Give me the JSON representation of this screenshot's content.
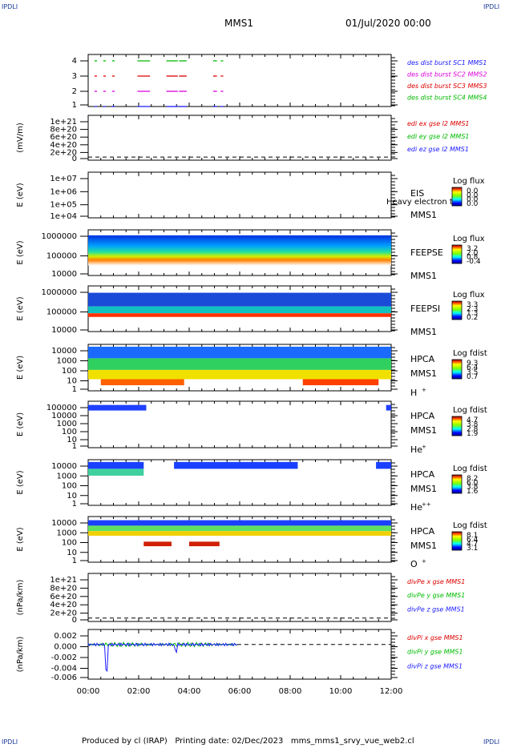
{
  "corner": {
    "tl": "IPDLI",
    "tr": "IPDLI",
    "bl": "IPDLI",
    "br": "IPDLI"
  },
  "header": {
    "mission": "MMS1",
    "date": "01/Jul/2020 00:00"
  },
  "footer": {
    "text": "Produced by cl (IRAP)   Printing date: 02/Dec/2023   mms_mms1_srvy_vue_web2.cl"
  },
  "chart_data": {
    "type": "line",
    "x_ticks": [
      "00:00",
      "02:00",
      "04:00",
      "06:00",
      "08:00",
      "10:00",
      "12:00"
    ],
    "x_range_hours": [
      0,
      12
    ],
    "panels": [
      {
        "id": "burst",
        "ticks": [
          "4",
          "3",
          "2",
          "1"
        ],
        "legend": [
          {
            "text": "des dist burst SC1 MMS1",
            "color": "#1a1aff"
          },
          {
            "text": "des dist burst SC2 MMS2",
            "color": "#dd00dd"
          },
          {
            "text": "des dist burst SC3 MMS3",
            "color": "#dd0000"
          },
          {
            "text": "des dist burst SC4 MMS4",
            "color": "#00bb00"
          }
        ],
        "series": [
          {
            "sc": 4,
            "color": "#00bb00",
            "segments": [
              [
                0.25,
                0.35
              ],
              [
                0.6,
                0.7
              ],
              [
                0.95,
                1.05
              ],
              [
                1.95,
                2.45
              ],
              [
                3.1,
                3.55
              ],
              [
                3.6,
                3.9
              ],
              [
                4.95,
                5.1
              ],
              [
                5.25,
                5.35
              ]
            ]
          },
          {
            "sc": 3,
            "color": "#dd0000",
            "segments": [
              [
                0.25,
                0.35
              ],
              [
                0.6,
                0.7
              ],
              [
                0.95,
                1.05
              ],
              [
                1.95,
                2.45
              ],
              [
                3.1,
                3.55
              ],
              [
                3.6,
                3.9
              ],
              [
                4.95,
                5.1
              ],
              [
                5.25,
                5.35
              ]
            ]
          },
          {
            "sc": 2,
            "color": "#dd00dd",
            "segments": [
              [
                0.25,
                0.35
              ],
              [
                0.6,
                0.7
              ],
              [
                0.95,
                1.05
              ],
              [
                1.95,
                2.45
              ],
              [
                3.1,
                3.55
              ],
              [
                3.6,
                3.9
              ],
              [
                4.95,
                5.1
              ],
              [
                5.25,
                5.35
              ]
            ]
          },
          {
            "sc": 1,
            "color": "#1a1aff",
            "segments": [
              [
                0.25,
                0.35
              ],
              [
                0.6,
                0.7
              ],
              [
                0.95,
                1.05
              ],
              [
                1.95,
                2.45
              ],
              [
                3.1,
                3.55
              ],
              [
                3.6,
                3.9
              ],
              [
                4.95,
                5.1
              ],
              [
                5.25,
                5.35
              ]
            ]
          }
        ]
      },
      {
        "id": "edi",
        "ylabel": "(mV/m)",
        "ticks": [
          "1e+21",
          "8e+20",
          "6e+20",
          "4e+20",
          "2e+20",
          "0"
        ],
        "legend": [
          {
            "text": "edi ex gse l2 MMS1",
            "color": "#dd0000"
          },
          {
            "text": "edi ey gse l2 MMS1",
            "color": "#00bb00"
          },
          {
            "text": "edi ez gse l2 MMS1",
            "color": "#1a1aff"
          }
        ]
      },
      {
        "id": "eis",
        "ylabel": "E (eV)",
        "ticks": [
          "1e+07",
          "1e+06",
          "1e+05",
          "1e+04"
        ],
        "labels": [
          "EIS",
          "Heavy electron to",
          "MMS1"
        ],
        "cb_title": "Log flux",
        "cb_ticks": [
          "0.0",
          "0.0",
          "0.0",
          "0.0"
        ]
      },
      {
        "id": "feepse",
        "ylabel": "E (eV)",
        "ticks": [
          "1000000",
          "100000",
          "10000"
        ],
        "labels": [
          "FEEPSE",
          "MMS1"
        ],
        "cb_title": "Log flux",
        "cb_ticks": [
          "3.2",
          "2.0",
          "0.8",
          "-0.4"
        ]
      },
      {
        "id": "feepsi",
        "ylabel": "E (eV)",
        "ticks": [
          "1000000",
          "100000",
          "10000"
        ],
        "labels": [
          "FEEPSI",
          "MMS1"
        ],
        "cb_title": "Log flux",
        "cb_ticks": [
          "3.3",
          "2.3",
          "1.3",
          "0.2"
        ]
      },
      {
        "id": "hpca_h",
        "ylabel": "E (eV)",
        "ticks": [
          "10000",
          "1000",
          "100",
          "10",
          "1"
        ],
        "labels": [
          "HPCA",
          "MMS1",
          "H"
        ],
        "sup": "+",
        "cb_title": "Log fdist",
        "cb_ticks": [
          "9.3",
          "6.4",
          "3.5",
          "0.7"
        ]
      },
      {
        "id": "hpca_he",
        "ylabel": "E (eV)",
        "ticks": [
          "100000",
          "10000",
          "1000",
          "100",
          "10",
          "1"
        ],
        "labels": [
          "HPCA",
          "MMS1",
          "He"
        ],
        "sup": "+",
        "cb_title": "Log fdist",
        "cb_ticks": [
          "4.7",
          "3.8",
          "2.8",
          "1.9"
        ]
      },
      {
        "id": "hpca_hepp",
        "ylabel": "E (eV)",
        "ticks": [
          "10000",
          "1000",
          "100",
          "10",
          "1"
        ],
        "labels": [
          "HPCA",
          "MMS1",
          "He"
        ],
        "sup": "++",
        "cb_title": "Log fdist",
        "cb_ticks": [
          "8.2",
          "6.0",
          "3.8",
          "1.6"
        ]
      },
      {
        "id": "hpca_o",
        "ylabel": "E (eV)",
        "ticks": [
          "10000",
          "1000",
          "100",
          "10",
          "1"
        ],
        "labels": [
          "HPCA",
          "MMS1",
          "O"
        ],
        "sup": "+",
        "cb_title": "Log fdist",
        "cb_ticks": [
          "8.1",
          "6.4",
          "4.7",
          "3.1"
        ]
      },
      {
        "id": "divpe",
        "ylabel": "(nPa/km)",
        "ticks": [
          "1e+21",
          "8e+20",
          "6e+20",
          "4e+20",
          "2e+20",
          "0"
        ],
        "legend": [
          {
            "text": "divPe x gse MMS1",
            "color": "#dd0000"
          },
          {
            "text": "divPe y gse MMS1",
            "color": "#00bb00"
          },
          {
            "text": "divPe z gse MMS1",
            "color": "#1a1aff"
          }
        ]
      },
      {
        "id": "divpi",
        "ylabel": "(nPa/km)",
        "ticks": [
          "0.002",
          "0.000",
          "-0.002",
          "-0.004",
          "-0.006"
        ],
        "ylim": [
          -0.007,
          0.003
        ],
        "legend": [
          {
            "text": "divPi x gse MMS1",
            "color": "#dd0000"
          },
          {
            "text": "divPi y gse MMS1",
            "color": "#00bb00"
          },
          {
            "text": "divPi z gse MMS1",
            "color": "#1a1aff"
          }
        ]
      }
    ]
  }
}
